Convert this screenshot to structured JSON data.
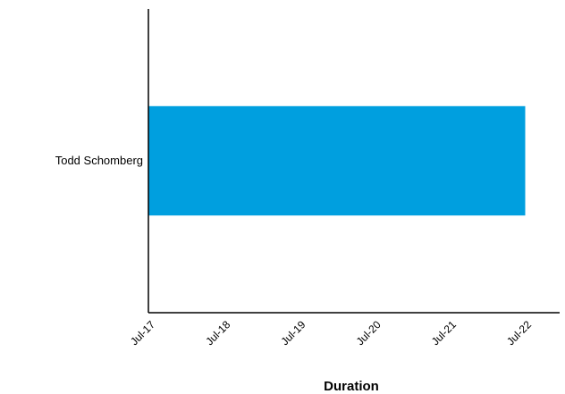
{
  "chart_data": {
    "type": "bar",
    "orientation": "horizontal",
    "categories": [
      "Todd Schomberg"
    ],
    "series": [
      {
        "values": [
          {
            "start": "Jul-17",
            "end": "Jul-22"
          }
        ]
      }
    ],
    "x_ticks": [
      "Jul-17",
      "Jul-18",
      "Jul-19",
      "Jul-20",
      "Jul-21",
      "Jul-22"
    ],
    "xlabel": "Duration",
    "ylabel": "",
    "title": "",
    "grid": false,
    "legend": "none",
    "bar_color": "#009fdf"
  }
}
